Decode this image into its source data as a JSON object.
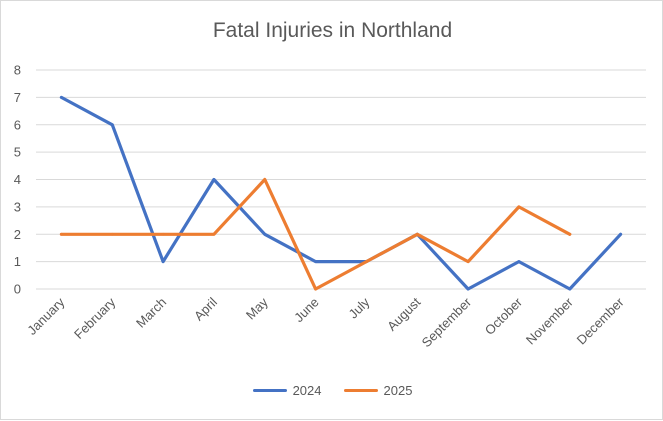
{
  "chart_data": {
    "type": "line",
    "title": "Fatal Injuries in Northland",
    "categories": [
      "January",
      "February",
      "March",
      "April",
      "May",
      "June",
      "July",
      "August",
      "September",
      "October",
      "November",
      "December"
    ],
    "series": [
      {
        "name": "2024",
        "color": "#4472c4",
        "values": [
          7,
          6,
          1,
          4,
          2,
          1,
          1,
          2,
          0,
          1,
          0,
          2
        ]
      },
      {
        "name": "2025",
        "color": "#ed7d31",
        "values": [
          2,
          2,
          2,
          2,
          4,
          0,
          1,
          2,
          1,
          3,
          2,
          null
        ]
      }
    ],
    "xlabel": "",
    "ylabel": "",
    "ylim": [
      0,
      8
    ],
    "yticks": [
      0,
      1,
      2,
      3,
      4,
      5,
      6,
      7,
      8
    ],
    "grid": true,
    "legend": "bottom"
  }
}
